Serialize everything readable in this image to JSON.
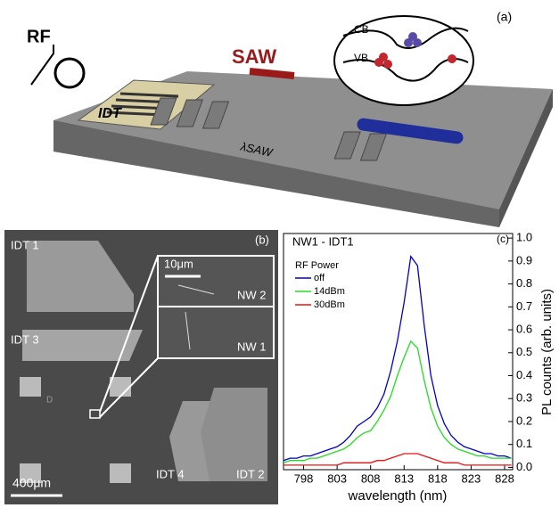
{
  "panel_a": {
    "label": "(a)",
    "rf": "RF",
    "saw": "SAW",
    "idt": "IDT",
    "cb": "CB",
    "vb": "VB",
    "lambda": "λSAW"
  },
  "panel_b": {
    "label": "(b)",
    "idt1": "IDT 1",
    "idt3": "IDT 3",
    "idt4": "IDT 4",
    "idt2": "IDT 2",
    "scale_small": "10μm",
    "nw2": "NW 2",
    "nw1": "NW 1",
    "scale_large": "400μm",
    "marker": "D"
  },
  "chart_data": {
    "type": "line",
    "title": "NW1 - IDT1",
    "panel_label": "(c)",
    "xlabel": "wavelength (nm)",
    "ylabel": "PL counts (arb. units)",
    "legend_title": "RF Power",
    "x": [
      795,
      796,
      797,
      798,
      799,
      800,
      801,
      802,
      803,
      804,
      805,
      806,
      807,
      808,
      809,
      810,
      811,
      812,
      813,
      814,
      815,
      816,
      817,
      818,
      819,
      820,
      821,
      822,
      823,
      824,
      825,
      826,
      827,
      828,
      829
    ],
    "series": [
      {
        "name": "off",
        "color": "#0000cc",
        "values": [
          0.03,
          0.04,
          0.04,
          0.05,
          0.05,
          0.06,
          0.07,
          0.08,
          0.09,
          0.11,
          0.14,
          0.18,
          0.2,
          0.22,
          0.26,
          0.32,
          0.42,
          0.55,
          0.72,
          0.92,
          0.88,
          0.62,
          0.4,
          0.27,
          0.19,
          0.14,
          0.11,
          0.09,
          0.08,
          0.07,
          0.06,
          0.06,
          0.05,
          0.05,
          0.04
        ]
      },
      {
        "name": "14dBm",
        "color": "#22dd22",
        "values": [
          0.02,
          0.03,
          0.03,
          0.03,
          0.04,
          0.04,
          0.05,
          0.06,
          0.07,
          0.08,
          0.1,
          0.13,
          0.15,
          0.16,
          0.2,
          0.25,
          0.31,
          0.4,
          0.48,
          0.55,
          0.52,
          0.38,
          0.26,
          0.18,
          0.13,
          0.1,
          0.08,
          0.07,
          0.06,
          0.05,
          0.05,
          0.04,
          0.04,
          0.04,
          0.04
        ]
      },
      {
        "name": "30dBm",
        "color": "#ee1111",
        "values": [
          0.01,
          0.01,
          0.01,
          0.01,
          0.01,
          0.01,
          0.01,
          0.01,
          0.01,
          0.02,
          0.02,
          0.02,
          0.02,
          0.02,
          0.03,
          0.03,
          0.04,
          0.05,
          0.06,
          0.06,
          0.06,
          0.05,
          0.04,
          0.03,
          0.02,
          0.02,
          0.02,
          0.01,
          0.01,
          0.01,
          0.01,
          0.01,
          0.01,
          0.01,
          0.01
        ]
      }
    ],
    "xlim": [
      795,
      829.2
    ],
    "xticks": [
      798,
      803,
      808,
      813,
      818,
      823,
      828
    ],
    "ylim": [
      -0.01,
      1.02
    ],
    "yticks": [
      {
        "value": 0,
        "label": "0.0"
      },
      0.1,
      0.2,
      0.3,
      0.4,
      0.5,
      0.6,
      0.7,
      0.8,
      0.9,
      {
        "value": 1,
        "label": "1.0"
      }
    ],
    "legend": "upper left"
  }
}
